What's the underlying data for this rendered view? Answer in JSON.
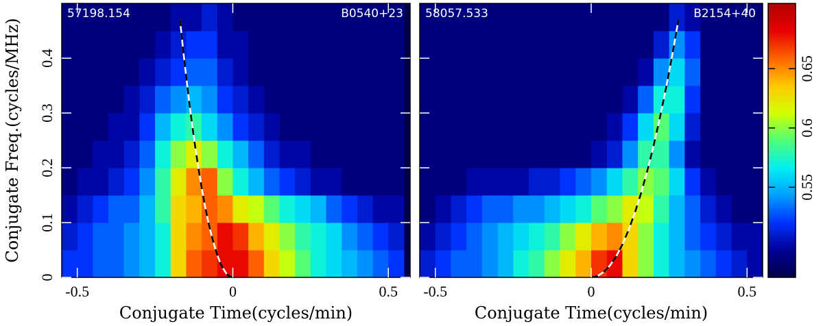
{
  "chart_data": [
    {
      "type": "heatmap",
      "label_left": "57198.154",
      "label_right": "B0540+23",
      "xlabel": "Conjugate Time(cycles/min)",
      "ylabel": "Conjugate Freq.(cycles/MHz)",
      "xlim": [
        -0.55,
        0.57
      ],
      "ylim": [
        0,
        0.5
      ],
      "xticks": [
        -0.5,
        0,
        0.5
      ],
      "yticks": [
        0,
        0.1,
        0.2,
        0.3,
        0.4
      ],
      "x_bins": [
        -0.55,
        -0.5,
        -0.45,
        -0.4,
        -0.35,
        -0.3,
        -0.25,
        -0.2,
        -0.15,
        -0.1,
        -0.05,
        0,
        0.05,
        0.1,
        0.15,
        0.2,
        0.25,
        0.3,
        0.35,
        0.4,
        0.45,
        0.5,
        0.55
      ],
      "y_bins": [
        0,
        0.05,
        0.1,
        0.15,
        0.2,
        0.25,
        0.3,
        0.35,
        0.4,
        0.45,
        0.5
      ],
      "z": [
        [
          0.52,
          0.52,
          0.53,
          0.53,
          0.54,
          0.55,
          0.57,
          0.63,
          0.66,
          0.67,
          0.68,
          0.68,
          0.66,
          0.63,
          0.61,
          0.59,
          0.57,
          0.56,
          0.55,
          0.54,
          0.53,
          0.52
        ],
        [
          0.51,
          0.52,
          0.53,
          0.53,
          0.54,
          0.55,
          0.57,
          0.63,
          0.65,
          0.66,
          0.68,
          0.67,
          0.64,
          0.62,
          0.6,
          0.58,
          0.57,
          0.56,
          0.54,
          0.53,
          0.52,
          0.51
        ],
        [
          0.5,
          0.51,
          0.52,
          0.53,
          0.53,
          0.55,
          0.58,
          0.63,
          0.64,
          0.66,
          0.65,
          0.62,
          0.61,
          0.59,
          0.57,
          0.56,
          0.55,
          0.53,
          0.52,
          0.51,
          0.5,
          0.5
        ],
        [
          0.49,
          0.5,
          0.5,
          0.51,
          0.52,
          0.54,
          0.58,
          0.62,
          0.65,
          0.66,
          0.6,
          0.57,
          0.55,
          0.53,
          0.52,
          0.51,
          0.5,
          0.5,
          0.49,
          0.49,
          0.49,
          0.49
        ],
        [
          0.49,
          0.49,
          0.5,
          0.5,
          0.51,
          0.53,
          0.57,
          0.6,
          0.62,
          0.6,
          0.57,
          0.55,
          0.53,
          0.51,
          0.5,
          0.5,
          0.49,
          0.49,
          0.49,
          0.49,
          0.49,
          0.49
        ],
        [
          0.49,
          0.49,
          0.49,
          0.5,
          0.5,
          0.52,
          0.55,
          0.57,
          0.58,
          0.56,
          0.54,
          0.52,
          0.51,
          0.5,
          0.49,
          0.49,
          0.49,
          0.49,
          0.49,
          0.49,
          0.49,
          0.49
        ],
        [
          0.49,
          0.49,
          0.49,
          0.49,
          0.5,
          0.51,
          0.53,
          0.54,
          0.55,
          0.54,
          0.52,
          0.51,
          0.5,
          0.49,
          0.49,
          0.49,
          0.49,
          0.49,
          0.49,
          0.49,
          0.49,
          0.49
        ],
        [
          0.49,
          0.49,
          0.49,
          0.49,
          0.49,
          0.5,
          0.51,
          0.52,
          0.53,
          0.53,
          0.51,
          0.5,
          0.49,
          0.49,
          0.49,
          0.49,
          0.49,
          0.49,
          0.49,
          0.49,
          0.49,
          0.49
        ],
        [
          0.49,
          0.49,
          0.49,
          0.49,
          0.49,
          0.49,
          0.5,
          0.51,
          0.52,
          0.52,
          0.5,
          0.5,
          0.49,
          0.49,
          0.49,
          0.49,
          0.49,
          0.49,
          0.49,
          0.49,
          0.49,
          0.49
        ],
        [
          0.49,
          0.49,
          0.49,
          0.49,
          0.49,
          0.49,
          0.49,
          0.5,
          0.5,
          0.51,
          0.5,
          0.49,
          0.49,
          0.49,
          0.49,
          0.49,
          0.49,
          0.49,
          0.49,
          0.49,
          0.49,
          0.49
        ]
      ],
      "curve": {
        "x": [
          -0.17,
          -0.16,
          -0.15,
          -0.14,
          -0.13,
          -0.12,
          -0.11,
          -0.1,
          -0.09,
          -0.08,
          -0.07,
          -0.06,
          -0.05,
          -0.04,
          -0.03,
          -0.02,
          -0.01,
          0
        ],
        "y": [
          0.471,
          0.417,
          0.367,
          0.319,
          0.275,
          0.235,
          0.197,
          0.163,
          0.132,
          0.104,
          0.08,
          0.059,
          0.041,
          0.026,
          0.015,
          0.0065,
          0.0016,
          0
        ]
      }
    },
    {
      "type": "heatmap",
      "label_left": "58057.533",
      "label_right": "B2154+40",
      "xlabel": "Conjugate Time(cycles/min)",
      "xlim": [
        -0.55,
        0.55
      ],
      "ylim": [
        0,
        0.5
      ],
      "xticks": [
        -0.5,
        0,
        0.5
      ],
      "yticks": [
        0,
        0.1,
        0.2,
        0.3,
        0.4
      ],
      "x_bins": [
        -0.55,
        -0.5,
        -0.45,
        -0.4,
        -0.35,
        -0.3,
        -0.25,
        -0.2,
        -0.15,
        -0.1,
        -0.05,
        0,
        0.05,
        0.1,
        0.15,
        0.2,
        0.25,
        0.3,
        0.35,
        0.4,
        0.45,
        0.5,
        0.55
      ],
      "y_bins": [
        0,
        0.05,
        0.1,
        0.15,
        0.2,
        0.25,
        0.3,
        0.35,
        0.4,
        0.45,
        0.5
      ],
      "z": [
        [
          0.51,
          0.52,
          0.53,
          0.53,
          0.54,
          0.55,
          0.57,
          0.58,
          0.6,
          0.62,
          0.64,
          0.67,
          0.68,
          0.63,
          0.6,
          0.57,
          0.55,
          0.54,
          0.53,
          0.52,
          0.51,
          0.5
        ],
        [
          0.5,
          0.51,
          0.52,
          0.53,
          0.54,
          0.55,
          0.56,
          0.57,
          0.58,
          0.6,
          0.62,
          0.64,
          0.65,
          0.63,
          0.6,
          0.57,
          0.55,
          0.53,
          0.52,
          0.51,
          0.5,
          0.5
        ],
        [
          0.49,
          0.5,
          0.51,
          0.52,
          0.53,
          0.53,
          0.54,
          0.54,
          0.55,
          0.56,
          0.57,
          0.59,
          0.6,
          0.62,
          0.61,
          0.58,
          0.55,
          0.53,
          0.51,
          0.5,
          0.49,
          0.49
        ],
        [
          0.49,
          0.49,
          0.49,
          0.5,
          0.5,
          0.5,
          0.5,
          0.51,
          0.51,
          0.52,
          0.53,
          0.54,
          0.56,
          0.58,
          0.6,
          0.59,
          0.56,
          0.52,
          0.5,
          0.49,
          0.49,
          0.49
        ],
        [
          0.49,
          0.49,
          0.49,
          0.49,
          0.49,
          0.49,
          0.49,
          0.49,
          0.49,
          0.49,
          0.49,
          0.5,
          0.51,
          0.54,
          0.58,
          0.58,
          0.54,
          0.5,
          0.49,
          0.49,
          0.49,
          0.49
        ],
        [
          0.49,
          0.49,
          0.49,
          0.49,
          0.49,
          0.49,
          0.49,
          0.49,
          0.49,
          0.49,
          0.49,
          0.49,
          0.5,
          0.52,
          0.56,
          0.59,
          0.56,
          0.51,
          0.49,
          0.49,
          0.49,
          0.49
        ],
        [
          0.49,
          0.49,
          0.49,
          0.49,
          0.49,
          0.49,
          0.49,
          0.49,
          0.49,
          0.49,
          0.49,
          0.49,
          0.49,
          0.5,
          0.53,
          0.57,
          0.57,
          0.52,
          0.49,
          0.49,
          0.49,
          0.49
        ],
        [
          0.49,
          0.49,
          0.49,
          0.49,
          0.49,
          0.49,
          0.49,
          0.49,
          0.49,
          0.49,
          0.49,
          0.49,
          0.49,
          0.49,
          0.5,
          0.54,
          0.56,
          0.53,
          0.49,
          0.49,
          0.49,
          0.49
        ],
        [
          0.49,
          0.49,
          0.49,
          0.49,
          0.49,
          0.49,
          0.49,
          0.49,
          0.49,
          0.49,
          0.49,
          0.49,
          0.49,
          0.49,
          0.49,
          0.51,
          0.54,
          0.52,
          0.49,
          0.49,
          0.49,
          0.49
        ],
        [
          0.49,
          0.49,
          0.49,
          0.49,
          0.49,
          0.49,
          0.49,
          0.49,
          0.49,
          0.49,
          0.49,
          0.49,
          0.49,
          0.49,
          0.49,
          0.49,
          0.51,
          0.5,
          0.49,
          0.49,
          0.49,
          0.49
        ]
      ],
      "curve": {
        "x": [
          0,
          0.02,
          0.04,
          0.06,
          0.08,
          0.1,
          0.12,
          0.14,
          0.16,
          0.18,
          0.2,
          0.22,
          0.24,
          0.26,
          0.28
        ],
        "y": [
          0,
          0.0024,
          0.0096,
          0.0216,
          0.0384,
          0.06,
          0.0864,
          0.1176,
          0.1536,
          0.1944,
          0.24,
          0.2904,
          0.3456,
          0.4056,
          0.4704
        ]
      }
    }
  ],
  "colorbar": {
    "zlim": [
      0.474,
      0.705
    ],
    "ticks": [
      0.55,
      0.6,
      0.65
    ],
    "colormap": [
      "#00004a",
      "#000096",
      "#0032ff",
      "#00a0ff",
      "#00f0f0",
      "#50ff78",
      "#d2ff00",
      "#ffc800",
      "#ff6400",
      "#e60000",
      "#b40000"
    ]
  }
}
